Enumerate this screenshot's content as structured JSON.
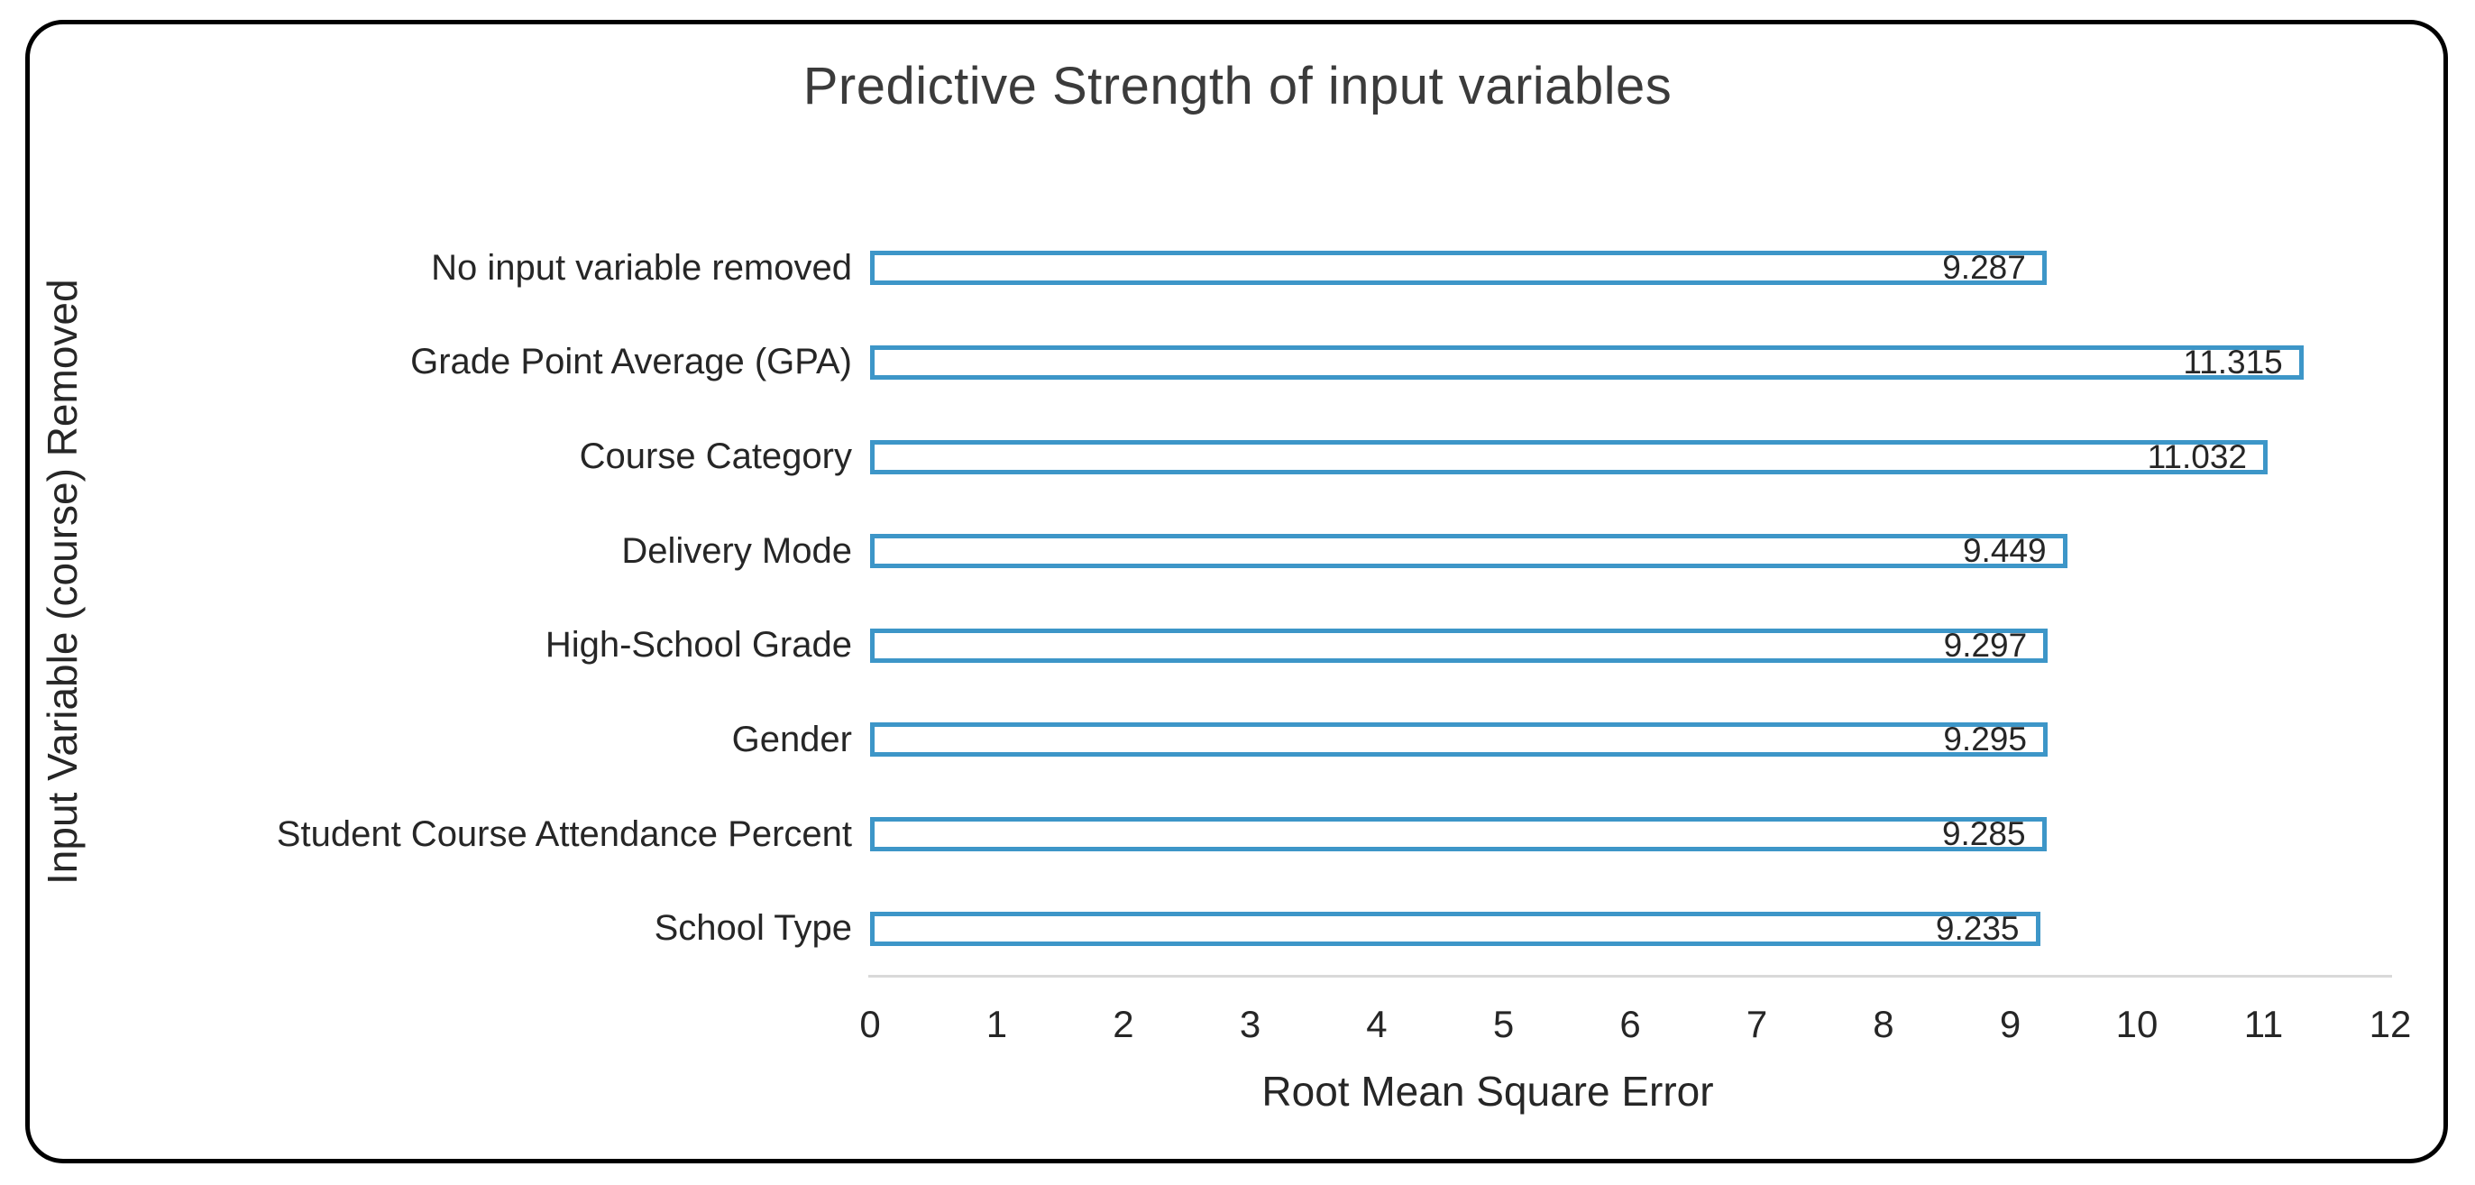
{
  "chart_data": {
    "type": "bar",
    "orientation": "horizontal",
    "title": "Predictive Strength of input variables",
    "xlabel": "Root Mean Square Error",
    "ylabel": "Input Variable (course) Removed",
    "categories": [
      "No input variable removed",
      "Grade Point Average (GPA)",
      "Course Category",
      "Delivery Mode",
      "High-School Grade",
      "Gender",
      "Student Course Attendance Percent",
      "School Type"
    ],
    "values": [
      9.287,
      11.315,
      11.032,
      9.449,
      9.297,
      9.295,
      9.285,
      9.235
    ],
    "value_labels": [
      "9.287",
      "11.315",
      "11.032",
      "9.449",
      "9.297",
      "9.295",
      "9.285",
      "9.235"
    ],
    "xlim": [
      0,
      12
    ],
    "x_ticks": [
      0,
      1,
      2,
      3,
      4,
      5,
      6,
      7,
      8,
      9,
      10,
      11,
      12
    ],
    "grid": false,
    "legend": "none",
    "data_label_position": "inside-end",
    "colors": {
      "bar_border": "#3d96c8",
      "bar_fill": "#ffffff",
      "axis_line": "#d9d9d9",
      "text": "#262626",
      "title": "#3b3b3b",
      "frame_border": "#000000"
    }
  }
}
